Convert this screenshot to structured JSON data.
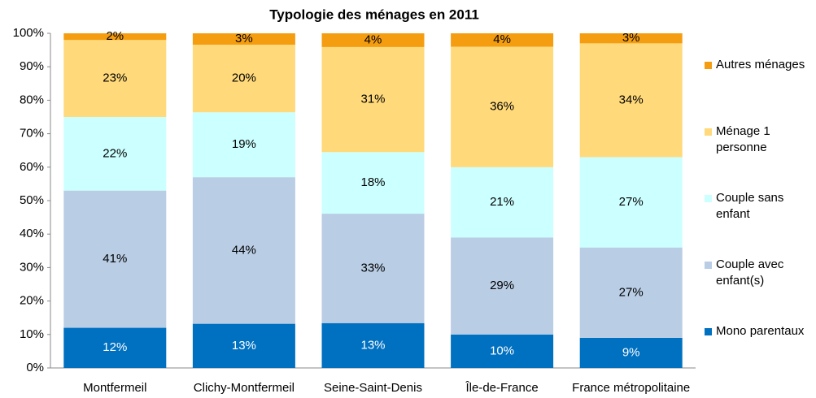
{
  "chart_data": {
    "type": "stacked_bar",
    "title": "Typologie des ménages en 2011",
    "categories": [
      "Montfermeil",
      "Clichy-Montfermeil",
      "Seine-Saint-Denis",
      "Île-de-France",
      "France métropolitaine"
    ],
    "series": [
      {
        "name": "Mono parentaux",
        "color": "#0070c0",
        "values": [
          12,
          13.2,
          13.4,
          10,
          9
        ],
        "value_labels": [
          "12%",
          "13%",
          "13%",
          "10%",
          "9%"
        ]
      },
      {
        "name": "Couple avec enfant(s)",
        "color": "#b9cde5",
        "values": [
          41,
          43.8,
          32.7,
          29,
          27
        ],
        "value_labels": [
          "41%",
          "44%",
          "33%",
          "29%",
          "27%"
        ]
      },
      {
        "name": "Couple sans enfant",
        "color": "#ccffff",
        "values": [
          22,
          19.4,
          18.4,
          21,
          27
        ],
        "value_labels": [
          "22%",
          "19%",
          "18%",
          "21%",
          "27%"
        ]
      },
      {
        "name": "Ménage 1 personne",
        "color": "#ffd97a",
        "values": [
          23,
          20.2,
          31.4,
          36,
          34
        ],
        "value_labels": [
          "23%",
          "20%",
          "31%",
          "36%",
          "34%"
        ]
      },
      {
        "name": "Autres ménages",
        "color": "#f59d10",
        "values": [
          2,
          3.4,
          4.1,
          4,
          3
        ],
        "value_labels": [
          "2%",
          "3%",
          "4%",
          "4%",
          "3%"
        ]
      }
    ],
    "ylim": [
      0,
      100
    ],
    "yticks": [
      {
        "value": 0,
        "label": "0%"
      },
      {
        "value": 10,
        "label": "10%"
      },
      {
        "value": 20,
        "label": "20%"
      },
      {
        "value": 30,
        "label": "30%"
      },
      {
        "value": 40,
        "label": "40%"
      },
      {
        "value": 50,
        "label": "50%"
      },
      {
        "value": 60,
        "label": "60%"
      },
      {
        "value": 70,
        "label": "70%"
      },
      {
        "value": 80,
        "label": "80%"
      },
      {
        "value": 90,
        "label": "90%"
      },
      {
        "value": 100,
        "label": "100%"
      }
    ],
    "legend": "right",
    "grid": false
  }
}
